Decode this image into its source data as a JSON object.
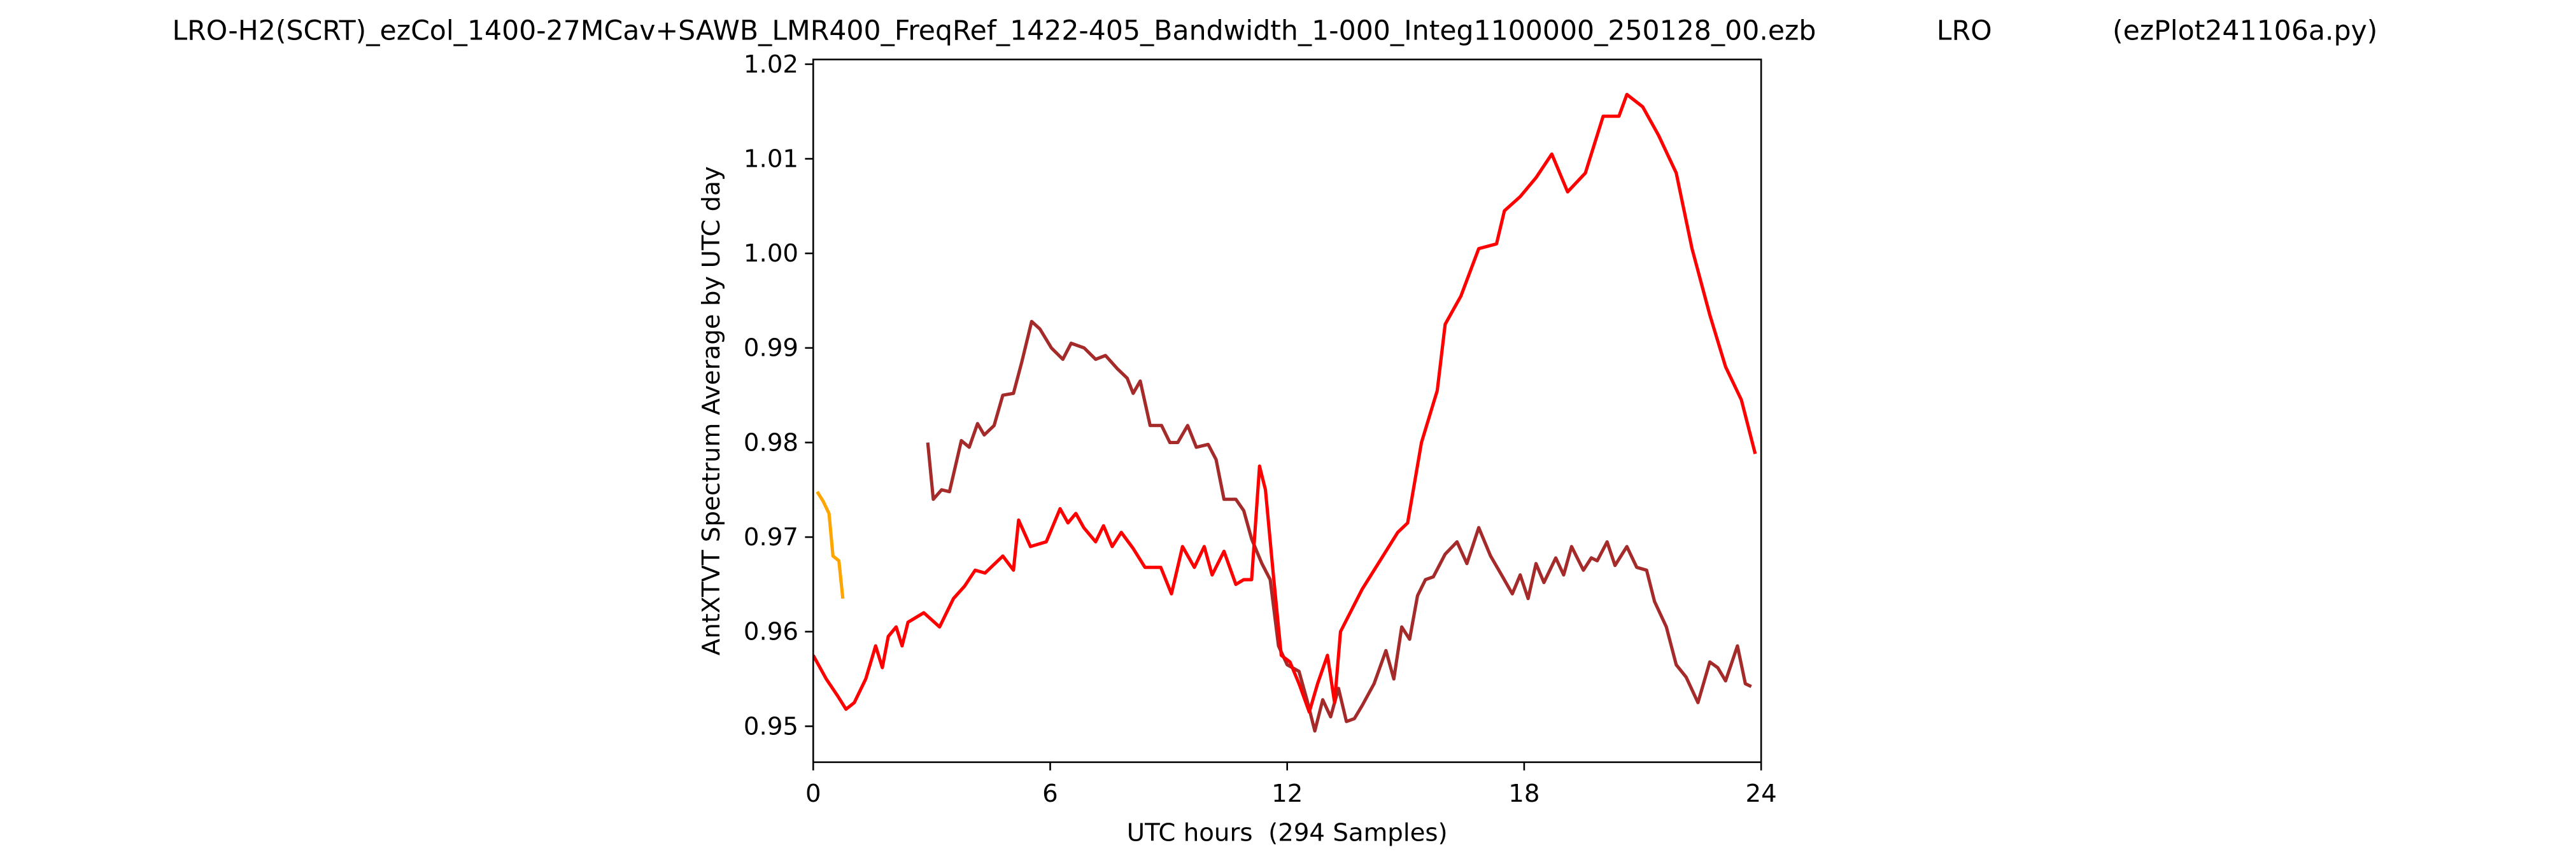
{
  "chart_data": {
    "type": "line",
    "title": "LRO-H2(SCRT)_ezCol_1400-27MCav+SAWB_LMR400_FreqRef_1422-405_Bandwidth_1-000_Integ1100000_250128_00.ezb              LRO              (ezPlot241106a.py)",
    "x_label": "UTC hours  (294 Samples)",
    "y_label": "AntXTVT Spectrum Average by UTC day",
    "xlim": [
      0,
      24
    ],
    "xticks": [
      0,
      6,
      12,
      18,
      24
    ],
    "ylim": [
      0.9462,
      1.0205
    ],
    "yticks": [
      0.95,
      0.96,
      0.97,
      0.98,
      0.99,
      {
        "value": 1,
        "label": "1.00"
      },
      1.01,
      1.02
    ],
    "grid": false,
    "series": [
      {
        "color": "#ffa500",
        "x": [
          0.1,
          0.25,
          0.4,
          0.5,
          0.65,
          0.75
        ],
        "values": [
          0.9748,
          0.9738,
          0.9725,
          0.968,
          0.9675,
          0.9635
        ]
      },
      {
        "color": "#a52a2a",
        "x": [
          2.9,
          3.04,
          3.25,
          3.45,
          3.75,
          3.95,
          4.16,
          4.33,
          4.58,
          4.8,
          5.07,
          5.28,
          5.53,
          5.74,
          6.03,
          6.32,
          6.53,
          6.86,
          7.15,
          7.4,
          7.7,
          7.95,
          8.1,
          8.28,
          8.53,
          8.82,
          9.03,
          9.23,
          9.48,
          9.7,
          10,
          10.2,
          10.4,
          10.7,
          10.9,
          11.1,
          11.36,
          11.57,
          11.78,
          12,
          12.3,
          12.5,
          12.7,
          12.9,
          13.1,
          13.3,
          13.5,
          13.7,
          13.9,
          14.2,
          14.5,
          14.7,
          14.9,
          15.1,
          15.3,
          15.5,
          15.7,
          16,
          16.3,
          16.55,
          16.85,
          17.15,
          17.4,
          17.7,
          17.9,
          18.1,
          18.3,
          18.5,
          18.8,
          19,
          19.2,
          19.5,
          19.7,
          19.85,
          20.1,
          20.3,
          20.6,
          20.85,
          21.1,
          21.3,
          21.6,
          21.85,
          22.1,
          22.4,
          22.7,
          22.9,
          23.1,
          23.4,
          23.6,
          23.75
        ],
        "values": [
          0.98,
          0.974,
          0.975,
          0.9748,
          0.9802,
          0.9795,
          0.982,
          0.9808,
          0.9818,
          0.985,
          0.9852,
          0.9885,
          0.9928,
          0.992,
          0.99,
          0.9888,
          0.9905,
          0.99,
          0.9888,
          0.9892,
          0.9878,
          0.9868,
          0.9852,
          0.9865,
          0.9818,
          0.9818,
          0.98,
          0.98,
          0.9818,
          0.9795,
          0.9798,
          0.9782,
          0.974,
          0.974,
          0.9728,
          0.9698,
          0.9672,
          0.9655,
          0.9585,
          0.9565,
          0.9558,
          0.9528,
          0.9495,
          0.9528,
          0.951,
          0.954,
          0.9505,
          0.9508,
          0.9522,
          0.9545,
          0.958,
          0.955,
          0.9605,
          0.9592,
          0.9638,
          0.9655,
          0.9658,
          0.9682,
          0.9695,
          0.9672,
          0.971,
          0.968,
          0.9662,
          0.964,
          0.966,
          0.9635,
          0.9672,
          0.9652,
          0.9678,
          0.966,
          0.969,
          0.9665,
          0.9678,
          0.9675,
          0.9695,
          0.967,
          0.969,
          0.9668,
          0.9665,
          0.9632,
          0.9605,
          0.9565,
          0.9552,
          0.9525,
          0.9568,
          0.9562,
          0.9548,
          0.9585,
          0.9545,
          0.9542
        ]
      },
      {
        "color": "#ff0000",
        "x": [
          0,
          0.33,
          0.62,
          0.83,
          1.04,
          1.33,
          1.58,
          1.75,
          1.9,
          2.1,
          2.25,
          2.4,
          2.8,
          3.2,
          3.55,
          3.83,
          4.1,
          4.35,
          4.8,
          5.07,
          5.2,
          5.5,
          5.9,
          6.25,
          6.45,
          6.65,
          6.85,
          7.15,
          7.35,
          7.57,
          7.8,
          8.1,
          8.4,
          8.8,
          9.07,
          9.35,
          9.65,
          9.9,
          10.1,
          10.4,
          10.7,
          10.9,
          11.1,
          11.3,
          11.45,
          11.65,
          11.85,
          12.07,
          12.3,
          12.56,
          12.77,
          13.02,
          13.2,
          13.35,
          13.9,
          14.8,
          15.05,
          15.4,
          15.8,
          16,
          16.4,
          16.85,
          17.3,
          17.5,
          17.9,
          18.3,
          18.7,
          19.1,
          19.55,
          20,
          20.4,
          20.6,
          21,
          21.4,
          21.85,
          22.25,
          22.7,
          23.1,
          23.5,
          23.85
        ],
        "values": [
          0.9575,
          0.955,
          0.9532,
          0.9518,
          0.9525,
          0.955,
          0.9585,
          0.9562,
          0.9595,
          0.9605,
          0.9585,
          0.961,
          0.962,
          0.9605,
          0.9635,
          0.9648,
          0.9665,
          0.9662,
          0.968,
          0.9665,
          0.9718,
          0.969,
          0.9695,
          0.973,
          0.9715,
          0.9725,
          0.971,
          0.9695,
          0.9712,
          0.969,
          0.9705,
          0.9688,
          0.9668,
          0.9668,
          0.964,
          0.969,
          0.9668,
          0.969,
          0.966,
          0.9685,
          0.965,
          0.9655,
          0.9655,
          0.9775,
          0.975,
          0.966,
          0.9575,
          0.9568,
          0.9545,
          0.9515,
          0.9545,
          0.9575,
          0.9525,
          0.96,
          0.9645,
          0.9705,
          0.9715,
          0.98,
          0.9855,
          0.9925,
          0.9955,
          1.0005,
          1.001,
          1.0045,
          1.006,
          1.008,
          1.0105,
          1.0065,
          1.0085,
          1.0145,
          1.0145,
          1.0168,
          1.0155,
          1.0125,
          1.0085,
          1.0005,
          0.9935,
          0.988,
          0.9845,
          0.9788
        ]
      }
    ]
  }
}
